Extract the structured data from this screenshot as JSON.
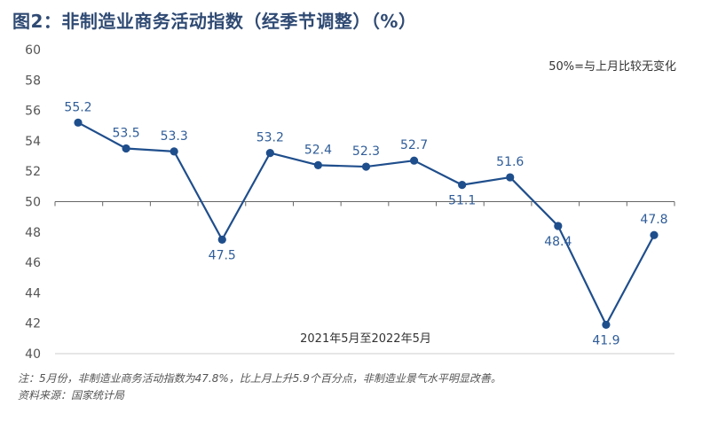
{
  "header": {
    "title": "图2：非制造业商务活动指数（经季节调整）（%）"
  },
  "chart_data": {
    "type": "line",
    "title": "图2：非制造业商务活动指数（经季节调整）（%）",
    "xlabel": "2021年5月至2022年5月",
    "ylabel": "",
    "ylim": [
      40,
      60
    ],
    "yticks": [
      40,
      42,
      44,
      46,
      48,
      50,
      52,
      54,
      56,
      58,
      60
    ],
    "grid": false,
    "reference_line": 50,
    "annotation": "50%=与上月比较无变化",
    "series": [
      {
        "values": [
          55.2,
          53.5,
          53.3,
          47.5,
          53.2,
          52.4,
          52.3,
          52.7,
          51.1,
          51.6,
          48.4,
          41.9,
          47.8
        ],
        "labels": [
          "55.2",
          "53.5",
          "53.3",
          "47.5",
          "53.2",
          "52.4",
          "52.3",
          "52.7",
          "51.1",
          "51.6",
          "48.4",
          "41.9",
          "47.8"
        ],
        "label_pos": [
          "above",
          "above",
          "above",
          "below",
          "above",
          "above",
          "above",
          "above",
          "below",
          "above",
          "below",
          "below",
          "above"
        ]
      }
    ],
    "colors": {
      "line": "#1f4e8c",
      "label": "#2f5d99",
      "axis": "#555555"
    }
  },
  "footer": {
    "note": "注：5月份，非制造业商务活动指数为47.8%，比上月上升5.9个百分点，非制造业景气水平明显改善。",
    "source": "资料来源：国家统计局"
  }
}
